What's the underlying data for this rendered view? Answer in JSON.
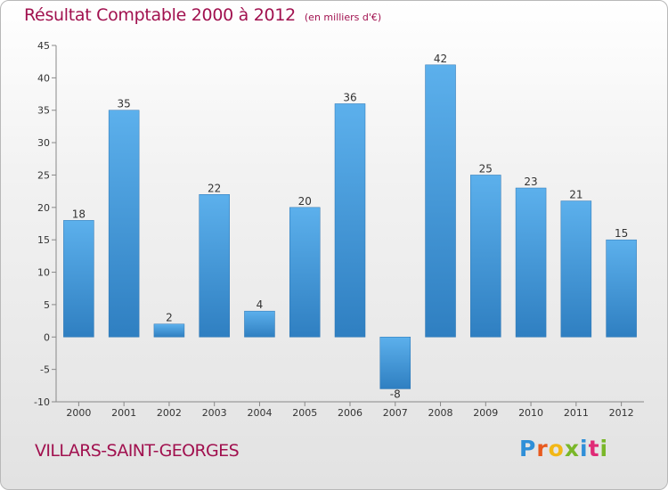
{
  "chart_data": {
    "type": "bar",
    "title": "Résultat Comptable 2000 à 2012",
    "subtitle": "(en milliers d'€)",
    "categories": [
      "2000",
      "2001",
      "2002",
      "2003",
      "2004",
      "2005",
      "2006",
      "2007",
      "2008",
      "2009",
      "2010",
      "2011",
      "2012"
    ],
    "values": [
      18,
      35,
      2,
      22,
      4,
      20,
      36,
      -8,
      42,
      25,
      23,
      21,
      15
    ],
    "ylim": [
      -10,
      45
    ],
    "yticks": [
      -10,
      -5,
      0,
      5,
      10,
      15,
      20,
      25,
      30,
      35,
      40,
      45
    ],
    "xlabel": "",
    "ylabel": "",
    "grid": false
  },
  "commune": "VILLARS-SAINT-GEORGES",
  "logo": [
    "P",
    "r",
    "o",
    "x",
    "i",
    "t",
    "i"
  ],
  "colors": {
    "title": "#a1114f",
    "bar_light": "#5cb0ec",
    "bar_dark": "#2f7fc1"
  }
}
